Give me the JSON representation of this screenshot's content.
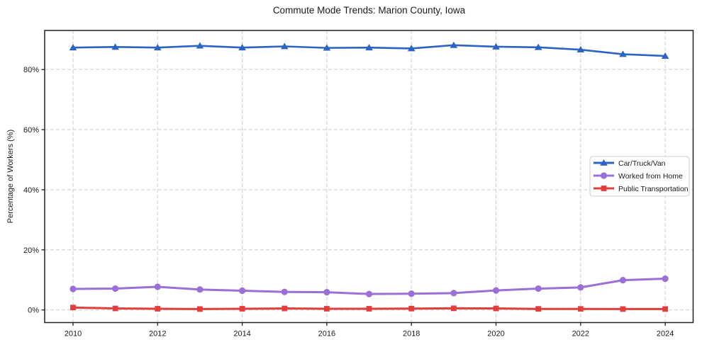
{
  "chart_data": {
    "type": "line",
    "title": "Commute Mode Trends: Marion County, Iowa",
    "xlabel": "",
    "ylabel": "Percentage of Workers (%)",
    "x": [
      2010,
      2011,
      2012,
      2013,
      2014,
      2015,
      2016,
      2017,
      2018,
      2019,
      2020,
      2021,
      2022,
      2023,
      2024
    ],
    "series": [
      {
        "name": "Car/Truck/Van",
        "marker": "triangle",
        "color": "#2b64c5",
        "line_width": 2.6,
        "values": [
          87.3,
          87.5,
          87.3,
          87.9,
          87.3,
          87.7,
          87.2,
          87.3,
          87.0,
          88.1,
          87.6,
          87.4,
          86.6,
          85.1,
          84.5
        ]
      },
      {
        "name": "Worked from Home",
        "marker": "circle",
        "color": "#9a6fd8",
        "line_width": 3,
        "values": [
          7.0,
          7.1,
          7.7,
          6.8,
          6.4,
          6.0,
          5.9,
          5.3,
          5.4,
          5.6,
          6.5,
          7.1,
          7.5,
          9.9,
          10.4
        ]
      },
      {
        "name": "Public Transportation",
        "marker": "square",
        "color": "#e23e3e",
        "line_width": 3,
        "values": [
          0.8,
          0.5,
          0.4,
          0.3,
          0.4,
          0.5,
          0.4,
          0.4,
          0.45,
          0.55,
          0.5,
          0.35,
          0.35,
          0.3,
          0.3
        ]
      }
    ],
    "x_ticks": [
      2010,
      2012,
      2014,
      2016,
      2018,
      2020,
      2022,
      2024
    ],
    "x_tick_labels": [
      "2010",
      "2012",
      "2014",
      "2016",
      "2018",
      "2020",
      "2022",
      "2024"
    ],
    "y_ticks": [
      0,
      20,
      40,
      60,
      80
    ],
    "y_tick_labels": [
      "0%",
      "20%",
      "40%",
      "60%",
      "80%"
    ],
    "xlim": [
      2009.33,
      2024.66
    ],
    "ylim": [
      -4.2,
      93.0
    ],
    "grid": true,
    "grid_style": "dashed",
    "legend_position": "middle-right",
    "colors": {
      "axis": "#222222",
      "grid": "#cccccc",
      "background": "#ffffff",
      "text": "#1a1a1a",
      "legend_border": "#cccccc"
    }
  }
}
